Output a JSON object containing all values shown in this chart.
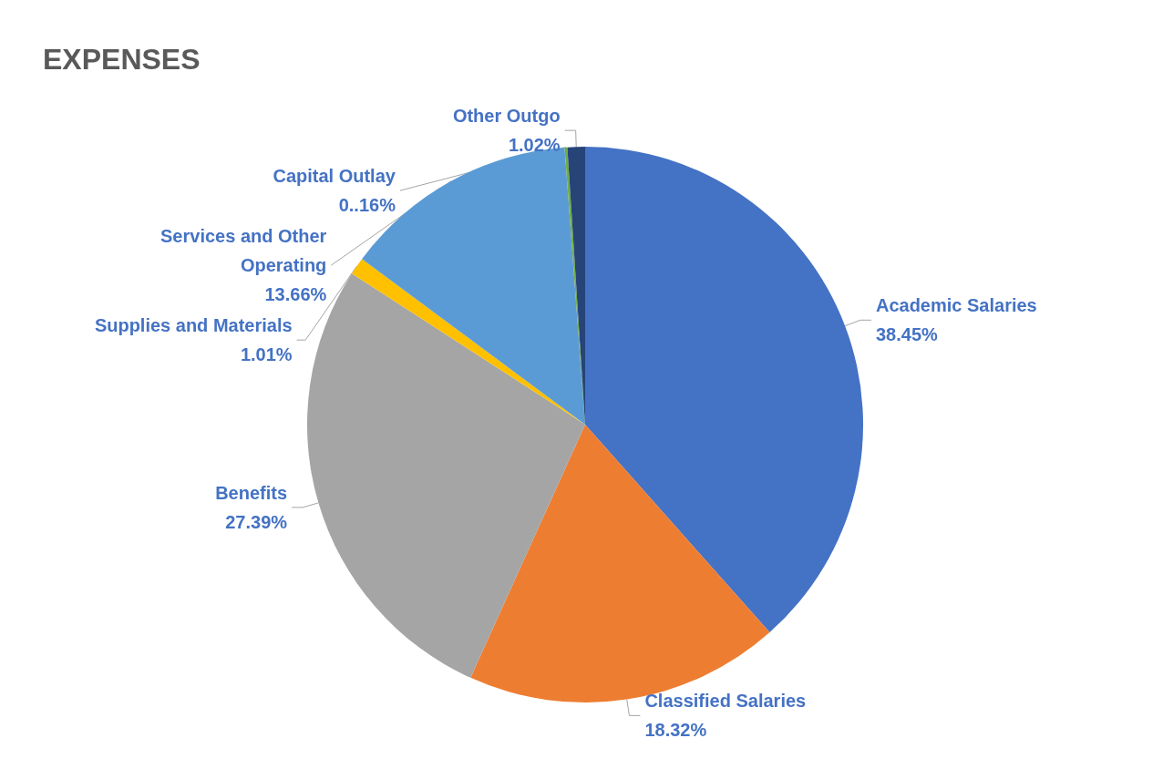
{
  "chart_data": {
    "type": "pie",
    "title": "EXPENSES",
    "categories": [
      "Academic Salaries",
      "Classified Salaries",
      "Benefits",
      "Supplies and Materials",
      "Services and Other Operating",
      "Capital Outlay",
      "Other Outgo"
    ],
    "values": [
      38.45,
      18.32,
      27.39,
      1.01,
      13.66,
      0.16,
      1.02
    ],
    "value_labels": [
      "38.45%",
      "18.32%",
      "27.39%",
      "1.01%",
      "13.66%",
      "0..16%",
      "1.02%"
    ],
    "colors": [
      "#4472c4",
      "#ed7d31",
      "#a5a5a5",
      "#ffc000",
      "#5b9bd5",
      "#70ad47",
      "#264478"
    ],
    "legend": false
  }
}
